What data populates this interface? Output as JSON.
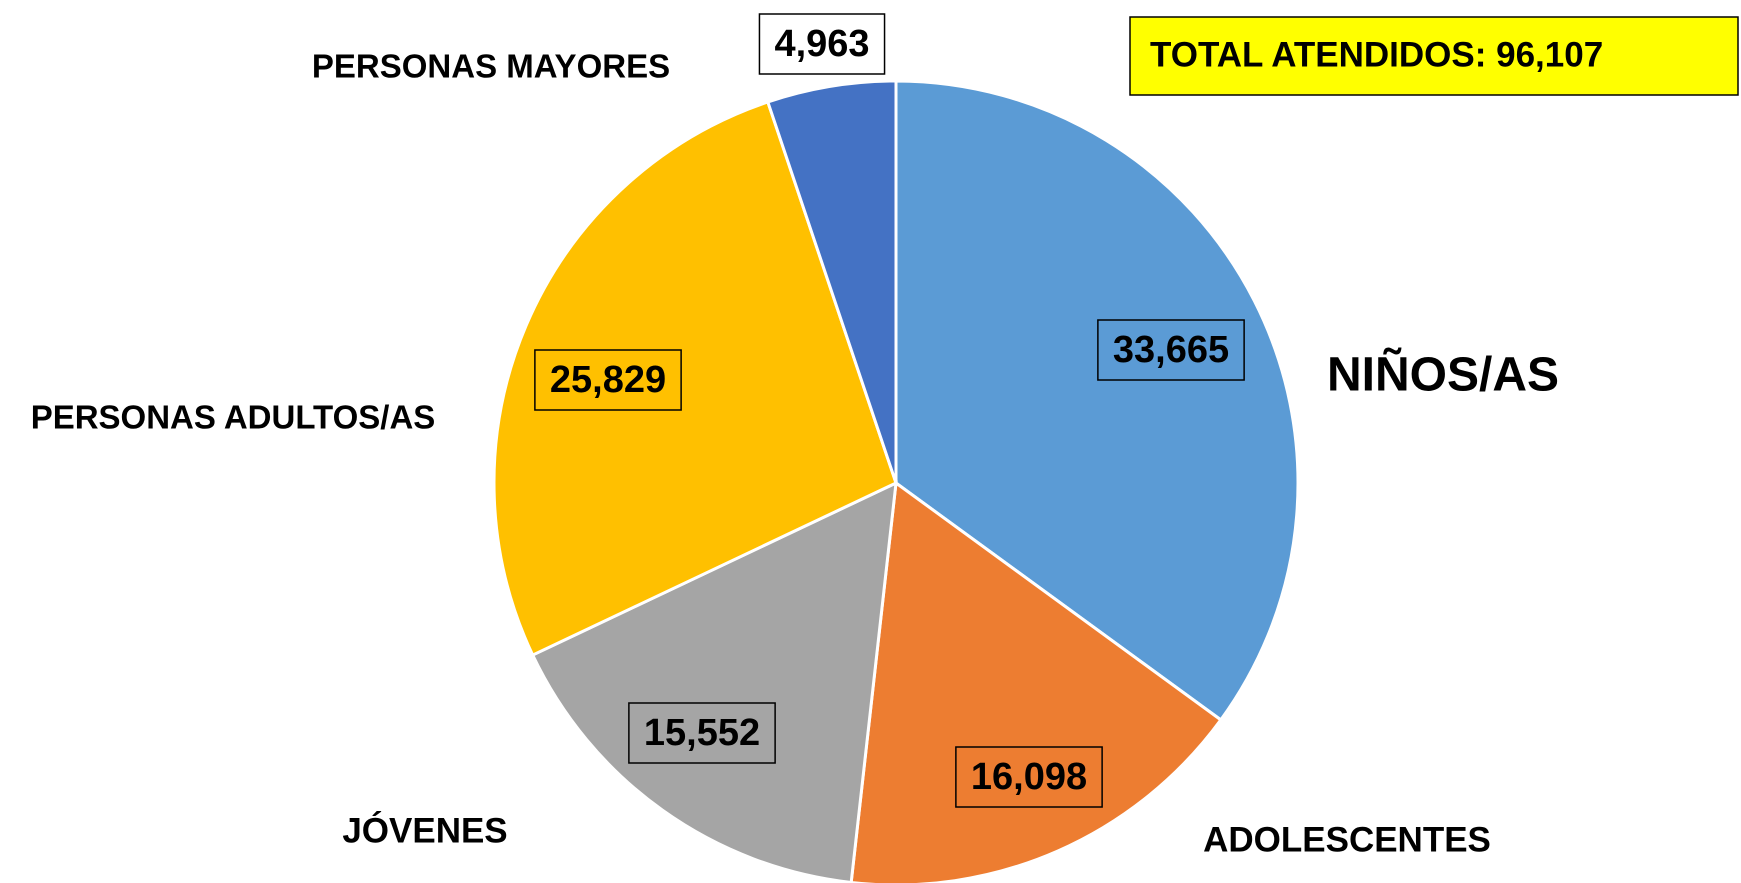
{
  "chart_data": {
    "type": "pie",
    "annotation": "TOTAL ATENDIDOS: 96,107",
    "categories": [
      "NIÑOS/AS",
      "ADOLESCENTES",
      "JÓVENES",
      "PERSONAS ADULTOS/AS",
      "PERSONAS MAYORES"
    ],
    "values": [
      33665,
      16098,
      15552,
      25829,
      4963
    ],
    "value_labels": [
      "33,665",
      "16,098",
      "15,552",
      "25,829",
      "4,963"
    ],
    "colors": [
      "#5b9bd5",
      "#ed7d31",
      "#a5a5a5",
      "#ffc000",
      "#4472c4"
    ]
  }
}
